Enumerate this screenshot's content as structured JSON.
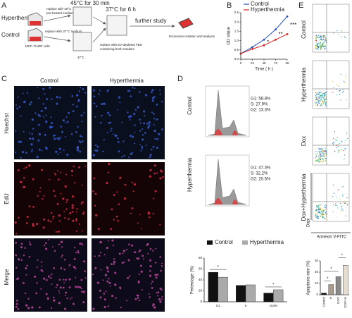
{
  "panel_letters": [
    "A",
    "B",
    "C",
    "D",
    "E"
  ],
  "schematic": {
    "hyperthermia": "Hyperthermia",
    "control": "Control",
    "cells": "MCF-7/ADR cells",
    "hot_medium": [
      "replace with 45°C",
      "pre-heated medium"
    ],
    "warm_medium": "replace with 37°C medium",
    "hot_step": "45°C for 30 min",
    "warm_step": "37°C",
    "recovery": "37°C for 6 h",
    "ev_note": [
      "replace with EV-depleted FBS",
      "containing fresh medium"
    ],
    "further": "further study",
    "exosomes": "Exosomes isolation and analysis"
  },
  "imaging": {
    "columns": [
      "Control",
      "Hyperthermia"
    ],
    "rows": [
      "Hoechst",
      "EdU",
      "Merge"
    ]
  },
  "cell_cycle": [
    {
      "group": "Control",
      "lines": [
        "G1: 58.8%",
        "S: 27.9%",
        "G2: 13.3%"
      ]
    },
    {
      "group": "Hyperthermia",
      "lines": [
        "G1: 47.3%",
        "S: 32.2%",
        "G2: 20.5%"
      ]
    }
  ],
  "apoptosis_plots": {
    "groups": [
      "Control",
      "Hyperthermia",
      "Dox",
      "Dox+Hyperthermia"
    ],
    "y_axis": "Dapi",
    "x_axis": "Annexin V-FITC"
  },
  "chart_data": [
    {
      "type": "line",
      "y_label": "OD Value",
      "x_label": "Time ( h )",
      "x": [
        0,
        24,
        48,
        72,
        96
      ],
      "series": [
        {
          "name": "Control",
          "color": "#1f4fb4",
          "values": [
            0.3,
            0.65,
            1.05,
            1.6,
            2.3
          ]
        },
        {
          "name": "Hyperthermia",
          "color": "#d42020",
          "values": [
            0.3,
            0.55,
            0.75,
            1.05,
            1.35
          ]
        }
      ],
      "xlim": [
        0,
        96
      ],
      "xticks": [
        0,
        24,
        48,
        72,
        96
      ],
      "ylim": [
        0,
        2.5
      ],
      "yticks": [
        {
          "value": 0,
          "label": "0.0"
        },
        {
          "value": 0.5,
          "label": "0.5"
        },
        {
          "value": 1,
          "label": "1.0"
        },
        {
          "value": 1.5,
          "label": "1.5"
        },
        {
          "value": 2,
          "label": "2.0"
        },
        {
          "value": 2.5,
          "label": "2.5"
        }
      ],
      "annotations": [
        {
          "text": "*",
          "x": 48
        },
        {
          "text": "**",
          "x": 72
        },
        {
          "text": "***",
          "x": 96
        }
      ]
    },
    {
      "type": "bar",
      "y_label": "Pertentage (%)",
      "categories": [
        "G1",
        "S",
        "G2/M"
      ],
      "series": [
        {
          "name": "Control",
          "color": "#111111",
          "values": [
            54,
            30,
            16
          ]
        },
        {
          "name": "Hyperthermia",
          "color": "#aaaaaa",
          "values": [
            45,
            31,
            22
          ]
        }
      ],
      "ylim": [
        0,
        80
      ],
      "yticks": [
        0,
        20,
        40,
        60,
        80
      ],
      "annotations": [
        {
          "text": "*",
          "category": "G1"
        },
        {
          "text": "*",
          "category": "G2/M"
        }
      ]
    },
    {
      "type": "bar",
      "y_label": "Apoptosis rate (%)",
      "categories": [
        "Control",
        "H",
        "DOX",
        "DOX+H"
      ],
      "series": [
        {
          "values": [
            1.5,
            9,
            16,
            26
          ]
        }
      ],
      "colors": [
        "#111111",
        "#a89a8c",
        "#8a8a8a",
        "#e6ddd0"
      ],
      "ylim": [
        0,
        30
      ],
      "yticks": [
        0,
        10,
        20,
        30
      ],
      "annotations": [
        {
          "text": "*",
          "from": "Control",
          "to": "H"
        },
        {
          "text": "*",
          "from": "Control",
          "to": "DOX"
        },
        {
          "text": "*",
          "from": "DOX",
          "to": "DOX+H"
        }
      ]
    }
  ]
}
